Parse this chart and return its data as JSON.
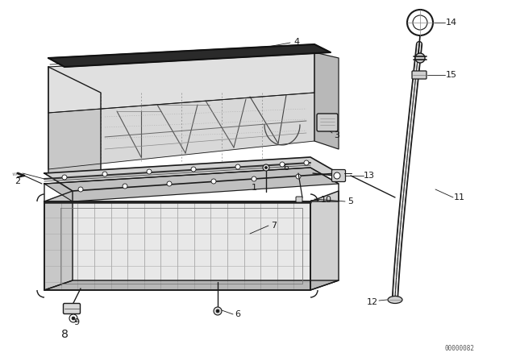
{
  "bg": "#ffffff",
  "lc": "#1a1a1a",
  "lc_thin": "#333333",
  "fig_w": 6.4,
  "fig_h": 4.48,
  "dpi": 100,
  "watermark": "00000082"
}
